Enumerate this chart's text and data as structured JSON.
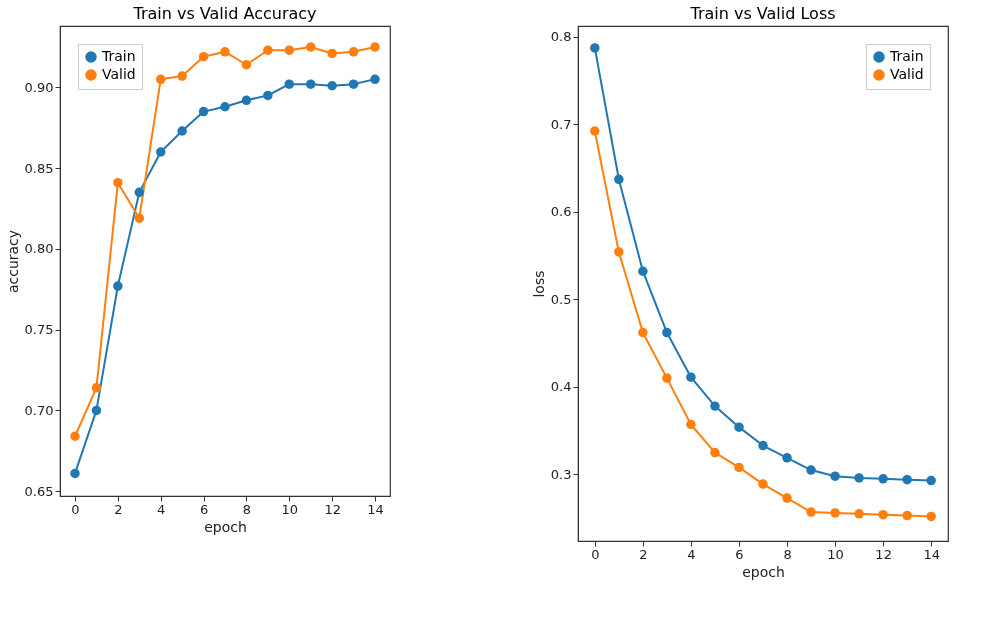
{
  "chart_data": [
    {
      "type": "line",
      "title": "Train vs Valid Accuracy",
      "xlabel": "epoch",
      "ylabel": "accuracy",
      "x": [
        0,
        1,
        2,
        3,
        4,
        5,
        6,
        7,
        8,
        9,
        10,
        11,
        12,
        13,
        14
      ],
      "series": [
        {
          "name": "Train",
          "color": "#1f77b4",
          "values": [
            0.661,
            0.7,
            0.777,
            0.835,
            0.86,
            0.873,
            0.885,
            0.888,
            0.892,
            0.895,
            0.902,
            0.902,
            0.901,
            0.902,
            0.905
          ]
        },
        {
          "name": "Valid",
          "color": "#ff7f0e",
          "values": [
            0.684,
            0.714,
            0.841,
            0.819,
            0.905,
            0.907,
            0.919,
            0.922,
            0.914,
            0.923,
            0.923,
            0.925,
            0.921,
            0.922,
            0.925
          ]
        }
      ],
      "xlim": [
        -0.7,
        14.7
      ],
      "xticks": [
        0,
        2,
        4,
        6,
        8,
        10,
        12,
        14
      ],
      "ylim": [
        0.647,
        0.938
      ],
      "yticks": [
        0.65,
        {
          "value": 0.7,
          "label": "0.70"
        },
        0.75,
        {
          "value": 0.8,
          "label": "0.80"
        },
        0.85,
        {
          "value": 0.9,
          "label": "0.90"
        }
      ],
      "grid": false,
      "legend": "top left",
      "marker": "circle",
      "line_style": "solid"
    },
    {
      "type": "line",
      "title": "Train vs Valid Loss",
      "xlabel": "epoch",
      "ylabel": "loss",
      "x": [
        0,
        1,
        2,
        3,
        4,
        5,
        6,
        7,
        8,
        9,
        10,
        11,
        12,
        13,
        14
      ],
      "series": [
        {
          "name": "Train",
          "color": "#1f77b4",
          "values": [
            0.787,
            0.637,
            0.532,
            0.462,
            0.411,
            0.378,
            0.354,
            0.333,
            0.319,
            0.305,
            0.298,
            0.296,
            0.295,
            0.294,
            0.293
          ]
        },
        {
          "name": "Valid",
          "color": "#ff7f0e",
          "values": [
            0.692,
            0.554,
            0.462,
            0.41,
            0.357,
            0.325,
            0.308,
            0.289,
            0.273,
            0.257,
            0.256,
            0.255,
            0.254,
            0.253,
            0.252
          ]
        }
      ],
      "xlim": [
        -0.7,
        14.7
      ],
      "xticks": [
        0,
        2,
        4,
        6,
        8,
        10,
        12,
        14
      ],
      "ylim": [
        0.224,
        0.812
      ],
      "yticks": [
        0.3,
        0.4,
        0.5,
        0.6,
        0.7,
        0.8
      ],
      "grid": false,
      "legend": "top right",
      "marker": "circle",
      "line_style": "solid"
    }
  ]
}
